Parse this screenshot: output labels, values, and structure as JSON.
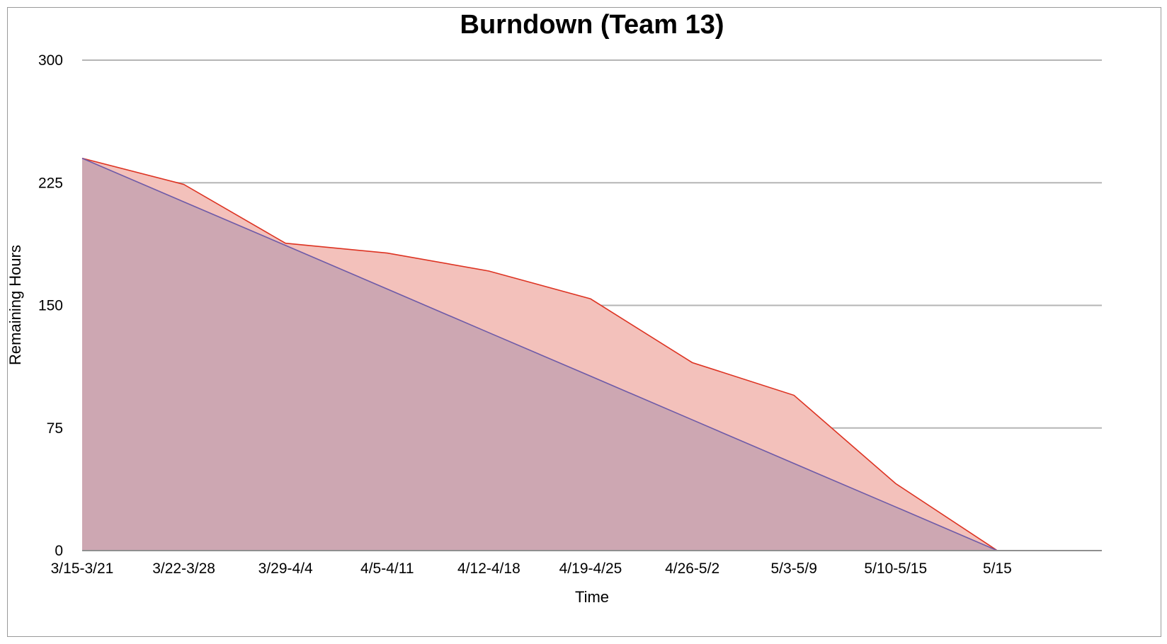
{
  "chart_data": {
    "type": "area",
    "title": "Burndown (Team 13)",
    "xlabel": "Time",
    "ylabel": "Remaining  Hours",
    "categories": [
      "3/15-3/21",
      "3/22-3/28",
      "3/29-4/4",
      "4/5-4/11",
      "4/12-4/18",
      "4/19-4/25",
      "4/26-5/2",
      "5/3-5/9",
      "5/10-5/15",
      "5/15"
    ],
    "ylim": [
      0,
      300
    ],
    "yticks": [
      "0",
      "75",
      "150",
      "225",
      "300"
    ],
    "grid": true,
    "series": [
      {
        "values": [
          240,
          224,
          188,
          182,
          171,
          154,
          115,
          95,
          41,
          0
        ],
        "color": "#dd3322",
        "fill": "#f3c1bb"
      },
      {
        "values": [
          240,
          213.3,
          186.7,
          160,
          133.3,
          106.7,
          80,
          53.3,
          26.7,
          0
        ],
        "color": "#6d5aa8",
        "fill": "#c7a3b0"
      }
    ]
  }
}
